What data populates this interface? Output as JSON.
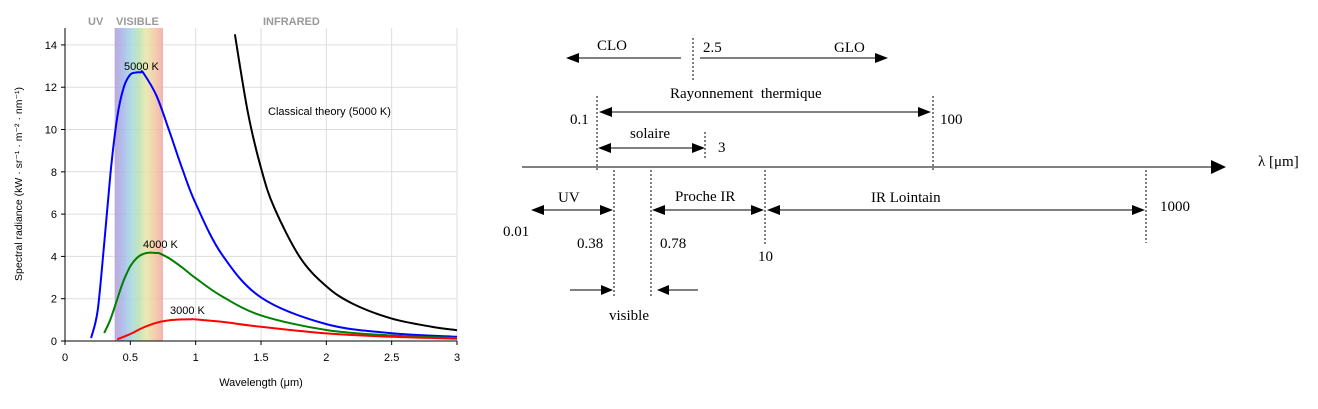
{
  "chart_data": {
    "type": "line",
    "xlabel": "Wavelength (μm)",
    "ylabel": "Spectral radiance (kW · sr⁻¹ · m⁻² · nm⁻¹)",
    "xlim": [
      0,
      3
    ],
    "ylim": [
      0,
      14.8
    ],
    "x_ticks": [
      "0",
      "0.5",
      "1",
      "1.5",
      "2",
      "2.5",
      "3"
    ],
    "y_ticks": [
      "0",
      "2",
      "4",
      "6",
      "8",
      "10",
      "12",
      "14"
    ],
    "grid": true,
    "bands": {
      "uv": "UV",
      "visible": "VISIBLE",
      "infrared": "INFRARED",
      "visible_range": [
        0.38,
        0.75
      ]
    },
    "series": [
      {
        "name": "5000 K",
        "color": "#0000ff",
        "x": [
          0.2,
          0.25,
          0.3,
          0.35,
          0.4,
          0.45,
          0.5,
          0.55,
          0.58,
          0.6,
          0.7,
          0.8,
          0.9,
          1.0,
          1.2,
          1.5,
          2.0,
          2.5,
          3.0
        ],
        "y": [
          0.14,
          1.45,
          4.6,
          8.04,
          10.6,
          12.0,
          12.6,
          12.7,
          12.7,
          12.67,
          11.6,
          9.9,
          8.1,
          6.5,
          4.1,
          2.06,
          0.8,
          0.37,
          0.2
        ]
      },
      {
        "name": "4000 K",
        "color": "#008000",
        "x": [
          0.3,
          0.35,
          0.4,
          0.45,
          0.5,
          0.55,
          0.6,
          0.65,
          0.7,
          0.72,
          0.8,
          0.9,
          1.0,
          1.2,
          1.5,
          2.0,
          2.5,
          3.0
        ],
        "y": [
          0.38,
          1.06,
          1.99,
          2.88,
          3.53,
          3.93,
          4.12,
          4.18,
          4.16,
          4.15,
          3.9,
          3.46,
          2.97,
          2.12,
          1.21,
          0.52,
          0.26,
          0.14
        ]
      },
      {
        "name": "3000 K",
        "color": "#ff0000",
        "x": [
          0.4,
          0.5,
          0.6,
          0.7,
          0.8,
          0.9,
          0.97,
          1.0,
          1.2,
          1.5,
          2.0,
          2.5,
          3.0
        ],
        "y": [
          0.08,
          0.33,
          0.64,
          0.86,
          0.98,
          1.02,
          1.03,
          1.02,
          0.91,
          0.67,
          0.36,
          0.2,
          0.11
        ]
      },
      {
        "name": "Classical theory (5000 K)",
        "color": "#000000",
        "x": [
          1.3,
          1.4,
          1.5,
          1.6,
          1.8,
          2.0,
          2.2,
          2.5,
          2.8,
          3.0
        ],
        "y": [
          14.5,
          10.8,
          8.18,
          6.32,
          3.94,
          2.59,
          1.77,
          1.06,
          0.68,
          0.51
        ]
      }
    ]
  },
  "diagram": {
    "clo": "CLO",
    "glo": "GLO",
    "split": "2.5",
    "thermal": "Rayonnement  thermique",
    "thermal_min": "0.1",
    "thermal_max": "100",
    "solar": "solaire",
    "solar_max": "3",
    "axis_label": "λ [μm]",
    "uv": "UV",
    "near_ir": "Proche IR",
    "far_ir": "IR Lointain",
    "v001": "0.01",
    "v038": "0.38",
    "v078": "0.78",
    "v10": "10",
    "v1000": "1000",
    "visible": "visible"
  }
}
